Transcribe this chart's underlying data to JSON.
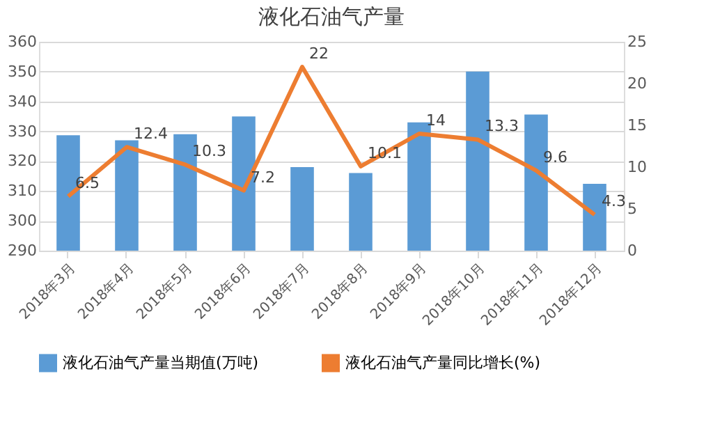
{
  "chart_data": {
    "type": "bar",
    "title": "液化石油气产量",
    "categories": [
      "2018年3月",
      "2018年4月",
      "2018年5月",
      "2018年6月",
      "2018年7月",
      "2018年8月",
      "2018年9月",
      "2018年10月",
      "2018年11月",
      "2018年12月"
    ],
    "series": [
      {
        "name": "液化石油气产量当期值(万吨)",
        "color": "#5b9bd5",
        "values": [
          328.7,
          327,
          329,
          335,
          318,
          316,
          333,
          350,
          335.6,
          312.4
        ]
      },
      {
        "name": "液化石油气产量同比增长(%)",
        "type": "line",
        "axis": "y2",
        "color": "#ed7d31",
        "values": [
          6.5,
          12.4,
          10.3,
          7.2,
          22,
          10.1,
          14,
          13.3,
          9.6,
          4.3
        ],
        "value_labels": [
          "6.5",
          "12.4",
          "10.3",
          "7.2",
          "22",
          "10.1",
          "14",
          "13.3",
          "9.6",
          "4.3"
        ]
      }
    ],
    "ylim": [
      290,
      360
    ],
    "yticks": [
      290,
      300,
      310,
      320,
      330,
      340,
      350,
      360
    ],
    "y2lim": [
      0,
      25
    ],
    "y2ticks": [
      0,
      5,
      10,
      15,
      20,
      25
    ],
    "grid": "y",
    "legend": "bottom",
    "marker": "none",
    "line_style": "solid"
  }
}
